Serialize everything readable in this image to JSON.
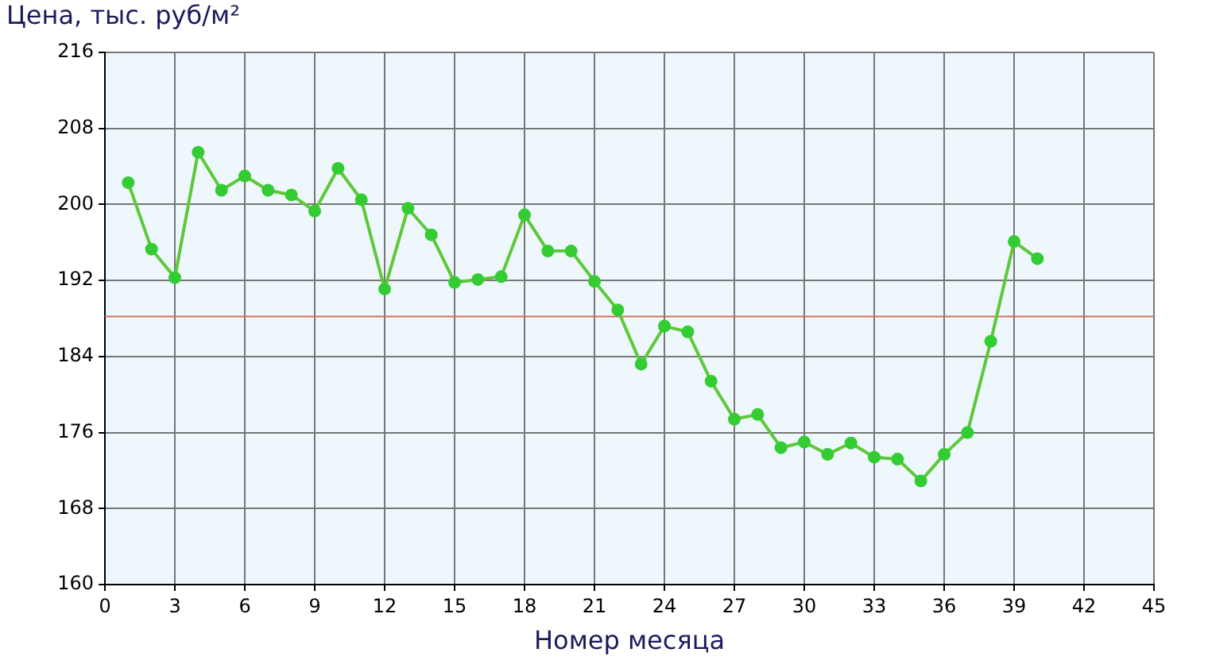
{
  "chart_data": {
    "type": "line",
    "xlabel": "Номер месяца",
    "ylabel": "Цена, тыс. руб/м²",
    "x": [
      1,
      2,
      3,
      4,
      5,
      6,
      7,
      8,
      9,
      10,
      11,
      12,
      13,
      14,
      15,
      16,
      17,
      18,
      19,
      20,
      21,
      22,
      23,
      24,
      25,
      26,
      27,
      28,
      29,
      30,
      31,
      32,
      33,
      34,
      35,
      36,
      37,
      38,
      39,
      40
    ],
    "series": [
      {
        "color": "#5ec83a",
        "values": [
          202.3,
          195.3,
          192.3,
          205.5,
          201.5,
          203.0,
          201.5,
          201.0,
          199.3,
          203.8,
          200.5,
          191.1,
          199.6,
          196.8,
          191.8,
          192.1,
          192.4,
          198.9,
          195.1,
          195.1,
          191.9,
          188.9,
          183.2,
          187.2,
          186.6,
          181.4,
          177.4,
          177.9,
          174.4,
          175.0,
          173.7,
          174.9,
          173.4,
          173.2,
          170.9,
          173.7,
          176.0,
          185.6,
          196.1,
          194.3
        ]
      }
    ],
    "xlim": [
      0,
      45
    ],
    "xticks": [
      0,
      3,
      6,
      9,
      12,
      15,
      18,
      21,
      24,
      27,
      30,
      33,
      36,
      39,
      42,
      45
    ],
    "ylim": [
      160,
      216
    ],
    "yticks": [
      160,
      168,
      176,
      184,
      192,
      200,
      208,
      216
    ],
    "ref_lines": [
      {
        "axis": "y",
        "value": 188.2,
        "color": "#d0705a"
      }
    ],
    "grid": true,
    "marker": "circle",
    "line_style": "solid",
    "legend": false
  }
}
